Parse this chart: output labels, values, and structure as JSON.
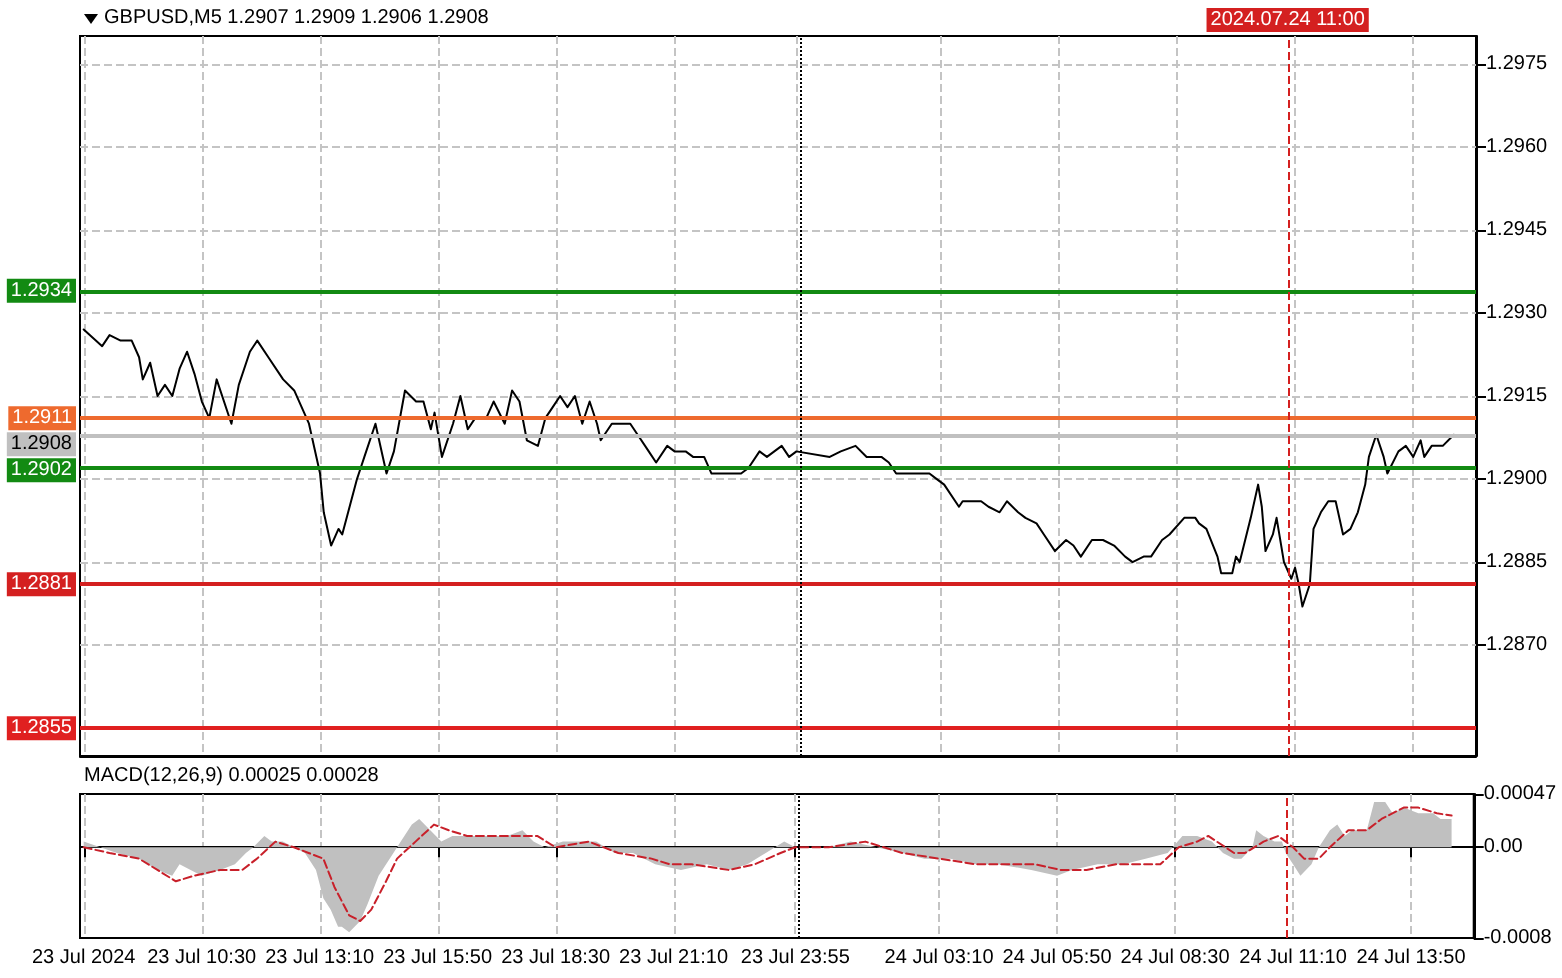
{
  "chart_data": [
    {
      "type": "line",
      "title": "GBPUSD,M5 1.2907 1.2909 1.2906 1.2908",
      "color": "#000000",
      "marker": "none",
      "grid": true,
      "tick_labels": "y",
      "x": [
        "2024-07-23T07:50",
        "2024-07-23T08:15",
        "2024-07-23T08:25",
        "2024-07-23T08:40",
        "2024-07-23T08:55",
        "2024-07-23T09:05",
        "2024-07-23T09:10",
        "2024-07-23T09:20",
        "2024-07-23T09:30",
        "2024-07-23T09:40",
        "2024-07-23T09:50",
        "2024-07-23T10:00",
        "2024-07-23T10:10",
        "2024-07-23T10:20",
        "2024-07-23T10:30",
        "2024-07-23T10:40",
        "2024-07-23T10:50",
        "2024-07-23T11:10",
        "2024-07-23T11:20",
        "2024-07-23T11:35",
        "2024-07-23T11:45",
        "2024-07-23T12:00",
        "2024-07-23T12:20",
        "2024-07-23T12:35",
        "2024-07-23T12:55",
        "2024-07-23T13:10",
        "2024-07-23T13:15",
        "2024-07-23T13:25",
        "2024-07-23T13:35",
        "2024-07-23T13:40",
        "2024-07-23T13:50",
        "2024-07-23T14:00",
        "2024-07-23T14:05",
        "2024-07-23T14:10",
        "2024-07-23T14:25",
        "2024-07-23T14:35",
        "2024-07-23T14:40",
        "2024-07-23T14:50",
        "2024-07-23T15:05",
        "2024-07-23T15:20",
        "2024-07-23T15:30",
        "2024-07-23T15:40",
        "2024-07-23T15:45",
        "2024-07-23T15:55",
        "2024-07-23T16:10",
        "2024-07-23T16:20",
        "2024-07-23T16:30",
        "2024-07-23T16:40",
        "2024-07-23T16:55",
        "2024-07-23T17:05",
        "2024-07-23T17:20",
        "2024-07-23T17:30",
        "2024-07-23T17:40",
        "2024-07-23T17:50",
        "2024-07-23T18:05",
        "2024-07-23T18:15",
        "2024-07-23T18:25",
        "2024-07-23T18:35",
        "2024-07-23T18:45",
        "2024-07-23T18:55",
        "2024-07-23T19:05",
        "2024-07-23T19:15",
        "2024-07-23T19:25",
        "2024-07-23T19:30",
        "2024-07-23T19:45",
        "2024-07-23T19:55",
        "2024-07-23T20:10",
        "2024-07-23T20:20",
        "2024-07-23T20:35",
        "2024-07-23T20:45",
        "2024-07-23T21:00",
        "2024-07-23T21:10",
        "2024-07-23T21:25",
        "2024-07-23T21:35",
        "2024-07-23T21:50",
        "2024-07-23T22:00",
        "2024-07-23T22:15",
        "2024-07-23T22:25",
        "2024-07-23T22:40",
        "2024-07-23T22:50",
        "2024-07-23T23:05",
        "2024-07-23T23:15",
        "2024-07-23T23:35",
        "2024-07-23T23:45",
        "2024-07-23T23:55",
        "2024-07-24T00:40",
        "2024-07-24T00:55",
        "2024-07-24T01:15",
        "2024-07-24T01:30",
        "2024-07-24T01:50",
        "2024-07-24T02:00",
        "2024-07-24T02:10",
        "2024-07-24T02:25",
        "2024-07-24T02:45",
        "2024-07-24T02:55",
        "2024-07-24T03:05",
        "2024-07-24T03:15",
        "2024-07-24T03:35",
        "2024-07-24T03:40",
        "2024-07-24T04:05",
        "2024-07-24T04:15",
        "2024-07-24T04:30",
        "2024-07-24T04:40",
        "2024-07-24T04:55",
        "2024-07-24T05:05",
        "2024-07-24T05:20",
        "2024-07-24T05:30",
        "2024-07-24T05:45",
        "2024-07-24T06:00",
        "2024-07-24T06:10",
        "2024-07-24T06:20",
        "2024-07-24T06:35",
        "2024-07-24T06:50",
        "2024-07-24T07:05",
        "2024-07-24T07:20",
        "2024-07-24T07:30",
        "2024-07-24T07:45",
        "2024-07-24T07:55",
        "2024-07-24T08:10",
        "2024-07-24T08:20",
        "2024-07-24T08:40",
        "2024-07-24T08:55",
        "2024-07-24T09:00",
        "2024-07-24T09:10",
        "2024-07-24T09:25",
        "2024-07-24T09:30",
        "2024-07-24T09:45",
        "2024-07-24T09:50",
        "2024-07-24T09:55",
        "2024-07-24T10:10",
        "2024-07-24T10:20",
        "2024-07-24T10:25",
        "2024-07-24T10:30",
        "2024-07-24T10:40",
        "2024-07-24T10:45",
        "2024-07-24T10:55",
        "2024-07-24T11:05",
        "2024-07-24T11:10",
        "2024-07-24T11:15",
        "2024-07-24T11:20",
        "2024-07-24T11:30",
        "2024-07-24T11:35",
        "2024-07-24T11:45",
        "2024-07-24T11:55",
        "2024-07-24T12:05",
        "2024-07-24T12:15",
        "2024-07-24T12:25",
        "2024-07-24T12:35",
        "2024-07-24T12:45",
        "2024-07-24T12:50",
        "2024-07-24T13:00",
        "2024-07-24T13:10",
        "2024-07-24T13:15",
        "2024-07-24T13:30",
        "2024-07-24T13:40",
        "2024-07-24T13:50",
        "2024-07-24T14:00",
        "2024-07-24T14:05",
        "2024-07-24T14:15",
        "2024-07-24T14:30",
        "2024-07-24T14:45"
      ],
      "values": [
        1.2927,
        1.2924,
        1.2926,
        1.2925,
        1.2925,
        1.2922,
        1.2918,
        1.2921,
        1.2915,
        1.2917,
        1.2915,
        1.292,
        1.2923,
        1.2919,
        1.2914,
        1.2911,
        1.2918,
        1.291,
        1.2917,
        1.2923,
        1.2925,
        1.2922,
        1.2918,
        1.2916,
        1.291,
        1.2901,
        1.2894,
        1.2888,
        1.2891,
        1.289,
        1.2895,
        1.29,
        1.2902,
        1.2904,
        1.291,
        1.2904,
        1.2901,
        1.2905,
        1.2916,
        1.2914,
        1.2914,
        1.2909,
        1.2912,
        1.2904,
        1.291,
        1.2915,
        1.2909,
        1.2911,
        1.2911,
        1.2914,
        1.291,
        1.2916,
        1.2914,
        1.2907,
        1.2906,
        1.2911,
        1.2913,
        1.2915,
        1.2913,
        1.2915,
        1.291,
        1.2914,
        1.291,
        1.2907,
        1.291,
        1.291,
        1.291,
        1.2908,
        1.2905,
        1.2903,
        1.2906,
        1.2905,
        1.2905,
        1.2904,
        1.2904,
        1.2901,
        1.2901,
        1.2901,
        1.2901,
        1.2902,
        1.2905,
        1.2904,
        1.2906,
        1.2904,
        1.2905,
        1.2904,
        1.2905,
        1.2906,
        1.2904,
        1.2904,
        1.2903,
        1.2901,
        1.2901,
        1.2901,
        1.2901,
        1.29,
        1.2899,
        1.2895,
        1.2896,
        1.2896,
        1.2895,
        1.2894,
        1.2896,
        1.2894,
        1.2893,
        1.2892,
        1.289,
        1.2887,
        1.2889,
        1.2888,
        1.2886,
        1.2889,
        1.2889,
        1.2888,
        1.2886,
        1.2885,
        1.2886,
        1.2886,
        1.2889,
        1.289,
        1.2893,
        1.2893,
        1.2892,
        1.2891,
        1.2886,
        1.2883,
        1.2883,
        1.2886,
        1.2885,
        1.2893,
        1.2899,
        1.2895,
        1.2887,
        1.289,
        1.2893,
        1.2885,
        1.2882,
        1.2884,
        1.2881,
        1.2877,
        1.2881,
        1.2891,
        1.2894,
        1.2896,
        1.2896,
        1.289,
        1.2891,
        1.2894,
        1.2899,
        1.2904,
        1.2908,
        1.2904,
        1.2901,
        1.2905,
        1.2906,
        1.2904,
        1.2907,
        1.2904,
        1.2906,
        1.2906,
        1.2908
      ],
      "xlim": [
        "2024-07-23T07:45",
        "2024-07-24T15:15"
      ],
      "xticks": [
        {
          "value": "2024-07-23T07:50",
          "label": null
        },
        {
          "value": "2024-07-23T10:30",
          "label": null
        },
        {
          "value": "2024-07-23T13:10",
          "label": null
        },
        {
          "value": "2024-07-23T15:50",
          "label": null
        },
        {
          "value": "2024-07-23T18:30",
          "label": null
        },
        {
          "value": "2024-07-23T21:10",
          "label": null
        },
        {
          "value": "2024-07-23T23:55",
          "label": null
        },
        {
          "value": "2024-07-24T03:10",
          "label": null
        },
        {
          "value": "2024-07-24T05:50",
          "label": null
        },
        {
          "value": "2024-07-24T08:30",
          "label": null
        },
        {
          "value": "2024-07-24T11:10",
          "label": null
        },
        {
          "value": "2024-07-24T13:50",
          "label": null
        }
      ],
      "ylim": [
        1.285,
        1.298
      ],
      "yticks": [
        {
          "value": 1.287,
          "label": "1.2870"
        },
        1.2885,
        {
          "value": 1.29,
          "label": "1.2900"
        },
        1.2915,
        {
          "value": 1.293,
          "label": "1.2930"
        },
        1.2945,
        {
          "value": 1.296,
          "label": "1.2960"
        },
        1.2975
      ],
      "ref_lines": [
        {
          "axis": "y",
          "value": 1.2934,
          "label": "1.2934",
          "color": "#128a12"
        },
        {
          "axis": "y",
          "value": 1.2911,
          "label": "1.2911",
          "color": "#ee6a2e"
        },
        {
          "axis": "y",
          "value": 1.2908,
          "label": "1.2908",
          "color": "#c0c0c0"
        },
        {
          "axis": "y",
          "value": 1.2902,
          "label": "1.2902",
          "color": "#128a12"
        },
        {
          "axis": "y",
          "value": 1.2881,
          "label": "1.2881",
          "color": "#d42020"
        },
        {
          "axis": "y",
          "value": 1.2855,
          "label": "1.2855",
          "color": "#e02020"
        },
        {
          "axis": "x",
          "value": "2024-07-24T00:00",
          "color": "#000000",
          "line_style": "dotted"
        },
        {
          "axis": "x",
          "value": "2024-07-24T11:00",
          "label": "2024.07.24 11:00",
          "color": "#d42020",
          "line_style": "dashed"
        }
      ]
    },
    {
      "type": "area",
      "title": "MACD(12,26,9) 0.00025 0.00028",
      "marker": "none",
      "grid": "x",
      "line_style": "dashed",
      "series": [
        {
          "color": "#c0c0c0",
          "x": [
            "2024-07-23T07:50",
            "2024-07-23T08:35",
            "2024-07-23T09:05",
            "2024-07-23T09:30",
            "2024-07-23T09:50",
            "2024-07-23T10:00",
            "2024-07-23T10:30",
            "2024-07-23T10:55",
            "2024-07-23T11:15",
            "2024-07-23T11:30",
            "2024-07-23T11:40",
            "2024-07-23T11:55",
            "2024-07-23T12:05",
            "2024-07-23T12:20",
            "2024-07-23T12:35",
            "2024-07-23T12:50",
            "2024-07-23T13:05",
            "2024-07-23T13:15",
            "2024-07-23T13:25",
            "2024-07-23T13:35",
            "2024-07-23T13:40",
            "2024-07-23T13:50",
            "2024-07-23T14:05",
            "2024-07-23T14:15",
            "2024-07-23T14:30",
            "2024-07-23T14:50",
            "2024-07-23T15:00",
            "2024-07-23T15:15",
            "2024-07-23T15:25",
            "2024-07-23T15:40",
            "2024-07-23T15:55",
            "2024-07-23T16:10",
            "2024-07-23T16:30",
            "2024-07-23T16:55",
            "2024-07-23T17:25",
            "2024-07-23T17:45",
            "2024-07-23T18:00",
            "2024-07-23T18:15",
            "2024-07-23T18:40",
            "2024-07-23T19:00",
            "2024-07-23T19:25",
            "2024-07-23T19:50",
            "2024-07-23T20:15",
            "2024-07-23T20:45",
            "2024-07-23T21:20",
            "2024-07-23T21:55",
            "2024-07-23T22:25",
            "2024-07-23T22:50",
            "2024-07-23T23:15",
            "2024-07-23T23:40",
            "2024-07-23T23:55",
            "2024-07-24T00:40",
            "2024-07-24T01:10",
            "2024-07-24T01:45",
            "2024-07-24T02:20",
            "2024-07-24T02:50",
            "2024-07-24T03:25",
            "2024-07-24T04:00",
            "2024-07-24T04:30",
            "2024-07-24T05:15",
            "2024-07-24T05:50",
            "2024-07-24T06:10",
            "2024-07-24T06:45",
            "2024-07-24T07:20",
            "2024-07-24T07:50",
            "2024-07-24T08:20",
            "2024-07-24T08:40",
            "2024-07-24T09:00",
            "2024-07-24T09:20",
            "2024-07-24T09:35",
            "2024-07-24T09:50",
            "2024-07-24T10:00",
            "2024-07-24T10:15",
            "2024-07-24T10:20",
            "2024-07-24T10:30",
            "2024-07-24T10:45",
            "2024-07-24T10:55",
            "2024-07-24T11:00",
            "2024-07-24T11:10",
            "2024-07-24T11:20",
            "2024-07-24T11:35",
            "2024-07-24T11:45",
            "2024-07-24T12:00",
            "2024-07-24T12:10",
            "2024-07-24T12:20",
            "2024-07-24T12:30",
            "2024-07-24T12:50",
            "2024-07-24T13:00",
            "2024-07-24T13:15",
            "2024-07-24T13:25",
            "2024-07-24T13:40",
            "2024-07-24T14:00",
            "2024-07-24T14:20",
            "2024-07-24T14:30",
            "2024-07-24T14:45"
          ],
          "values": [
            5e-05,
            -5e-05,
            -0.0001,
            -0.0002,
            -0.00025,
            -0.00015,
            -0.00025,
            -0.0002,
            -0.00015,
            -5e-05,
            0,
            0.0001,
            5e-05,
            5e-05,
            0,
            -5e-05,
            -0.0002,
            -0.00045,
            -0.00055,
            -0.0007,
            -0.0007,
            -0.00075,
            -0.00065,
            -0.0005,
            -0.00025,
            -5e-05,
            5e-05,
            0.0002,
            0.00025,
            0.00015,
            5e-05,
            0.0001,
            0.0001,
            0.0001,
            0.0001,
            0.00015,
            5e-05,
            0,
            5e-05,
            5e-05,
            5e-05,
            -5e-05,
            -5e-05,
            -0.00015,
            -0.0002,
            -0.00015,
            -0.0002,
            -0.00015,
            -5e-05,
            5e-05,
            0,
            0,
            5e-05,
            0,
            -5e-05,
            -0.0001,
            -0.0001,
            -0.00015,
            -0.00015,
            -0.0002,
            -0.00025,
            -0.0002,
            -0.00015,
            -0.00015,
            -0.0001,
            -5e-05,
            0.0001,
            0.0001,
            5e-05,
            -5e-05,
            -0.0001,
            -0.0001,
            0,
            0.00015,
            0.0001,
            5e-05,
            5e-05,
            -5e-05,
            -0.00015,
            -0.00025,
            -0.00015,
            0,
            0.00015,
            0.0002,
            0.0001,
            0.00015,
            0.00015,
            0.0004,
            0.0004,
            0.0003,
            0.00035,
            0.0003,
            0.0003,
            0.00025,
            0.00025
          ]
        },
        {
          "type": "line",
          "color": "#c8202a",
          "x": [
            "2024-07-23T07:50",
            "2024-07-23T08:25",
            "2024-07-23T09:05",
            "2024-07-23T09:30",
            "2024-07-23T09:55",
            "2024-07-23T10:20",
            "2024-07-23T10:55",
            "2024-07-23T11:25",
            "2024-07-23T11:45",
            "2024-07-23T12:10",
            "2024-07-23T12:35",
            "2024-07-23T12:55",
            "2024-07-23T13:15",
            "2024-07-23T13:30",
            "2024-07-23T13:50",
            "2024-07-23T14:05",
            "2024-07-23T14:20",
            "2024-07-23T14:40",
            "2024-07-23T14:55",
            "2024-07-23T15:20",
            "2024-07-23T15:45",
            "2024-07-23T16:05",
            "2024-07-23T16:30",
            "2024-07-23T17:10",
            "2024-07-23T17:45",
            "2024-07-23T18:05",
            "2024-07-23T18:30",
            "2024-07-23T19:15",
            "2024-07-23T19:55",
            "2024-07-23T20:40",
            "2024-07-23T21:05",
            "2024-07-23T21:35",
            "2024-07-23T22:25",
            "2024-07-23T23:00",
            "2024-07-23T23:35",
            "2024-07-23T23:55",
            "2024-07-24T00:40",
            "2024-07-24T01:30",
            "2024-07-24T02:20",
            "2024-07-24T03:10",
            "2024-07-24T04:00",
            "2024-07-24T04:50",
            "2024-07-24T05:20",
            "2024-07-24T05:55",
            "2024-07-24T06:30",
            "2024-07-24T07:10",
            "2024-07-24T08:10",
            "2024-07-24T08:35",
            "2024-07-24T09:00",
            "2024-07-24T09:15",
            "2024-07-24T09:50",
            "2024-07-24T10:05",
            "2024-07-24T10:30",
            "2024-07-24T10:50",
            "2024-07-24T11:10",
            "2024-07-24T11:25",
            "2024-07-24T11:45",
            "2024-07-24T12:00",
            "2024-07-24T12:25",
            "2024-07-24T12:50",
            "2024-07-24T13:10",
            "2024-07-24T13:40",
            "2024-07-24T14:00",
            "2024-07-24T14:25",
            "2024-07-24T14:45"
          ],
          "values": [
            0,
            -5e-05,
            -0.0001,
            -0.0002,
            -0.0003,
            -0.00025,
            -0.0002,
            -0.0002,
            -0.0001,
            5e-05,
            0,
            -5e-05,
            -0.0001,
            -0.00035,
            -0.0006,
            -0.00065,
            -0.00055,
            -0.0003,
            -0.0001,
            5e-05,
            0.0002,
            0.00015,
            0.0001,
            0.0001,
            0.0001,
            0.0001,
            0,
            5e-05,
            -5e-05,
            -0.0001,
            -0.00015,
            -0.00015,
            -0.0002,
            -0.00015,
            -5e-05,
            0,
            0,
            5e-05,
            -5e-05,
            -0.0001,
            -0.00015,
            -0.00015,
            -0.00015,
            -0.0002,
            -0.0002,
            -0.00015,
            -0.00015,
            0,
            5e-05,
            0.0001,
            -5e-05,
            -5e-05,
            5e-05,
            0.0001,
            0,
            -0.0001,
            -0.0001,
            0,
            0.00015,
            0.00015,
            0.00025,
            0.00035,
            0.00035,
            0.0003,
            0.00028
          ]
        }
      ],
      "xlim": [
        "2024-07-23T07:45",
        "2024-07-24T15:15"
      ],
      "xticks": [
        {
          "value": "2024-07-23T07:50",
          "label": "23 Jul 2024"
        },
        {
          "value": "2024-07-23T10:30",
          "label": "23 Jul 10:30"
        },
        {
          "value": "2024-07-23T13:10",
          "label": "23 Jul 13:10"
        },
        {
          "value": "2024-07-23T15:50",
          "label": "23 Jul 15:50"
        },
        {
          "value": "2024-07-23T18:30",
          "label": "23 Jul 18:30"
        },
        {
          "value": "2024-07-23T21:10",
          "label": "23 Jul 21:10"
        },
        {
          "value": "2024-07-23T23:55",
          "label": "23 Jul 23:55"
        },
        {
          "value": "2024-07-24T03:10",
          "label": "24 Jul 03:10"
        },
        {
          "value": "2024-07-24T05:50",
          "label": "24 Jul 05:50"
        },
        {
          "value": "2024-07-24T08:30",
          "label": "24 Jul 08:30"
        },
        {
          "value": "2024-07-24T11:10",
          "label": "24 Jul 11:10"
        },
        {
          "value": "2024-07-24T13:50",
          "label": "24 Jul 13:50"
        }
      ],
      "ylim": [
        -0.0008,
        0.00047
      ],
      "yticks": [
        -0.0008,
        {
          "value": 0,
          "label": "0.00"
        },
        0.00047
      ],
      "ref_lines": [
        {
          "axis": "x",
          "value": "2024-07-24T00:00",
          "color": "#000000",
          "line_style": "dotted"
        },
        {
          "axis": "x",
          "value": "2024-07-24T11:00",
          "color": "#d42020",
          "line_style": "dashed"
        }
      ]
    }
  ]
}
